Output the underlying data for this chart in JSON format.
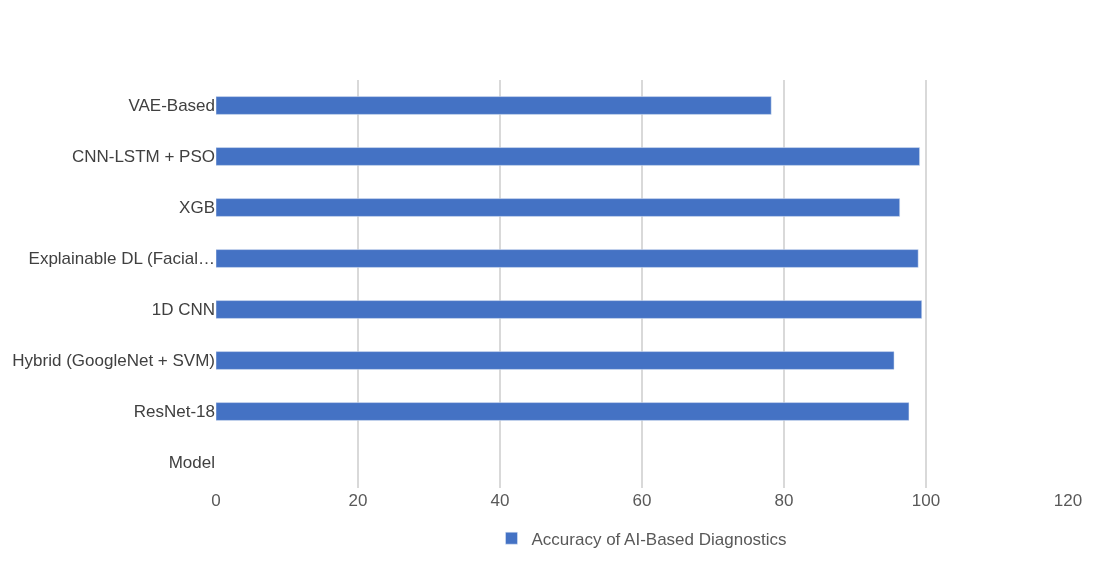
{
  "chart_data": {
    "type": "bar",
    "orientation": "horizontal",
    "categories": [
      "VAE-Based",
      "CNN-LSTM + PSO",
      "XGB",
      "Explainable DL (Facial…",
      "1D CNN",
      "Hybrid (GoogleNet + SVM)",
      "ResNet-18",
      "Model"
    ],
    "series": [
      {
        "name": "Accuracy of AI-Based Diagnostics",
        "color": "#4472c4",
        "values": [
          78.2,
          99.1,
          96.3,
          98.9,
          99.4,
          95.5,
          97.6,
          null
        ]
      }
    ],
    "xlim": [
      0,
      120
    ],
    "xticks": [
      0,
      20,
      40,
      60,
      80,
      100,
      120
    ],
    "grid": "x",
    "legend": "bottom"
  }
}
